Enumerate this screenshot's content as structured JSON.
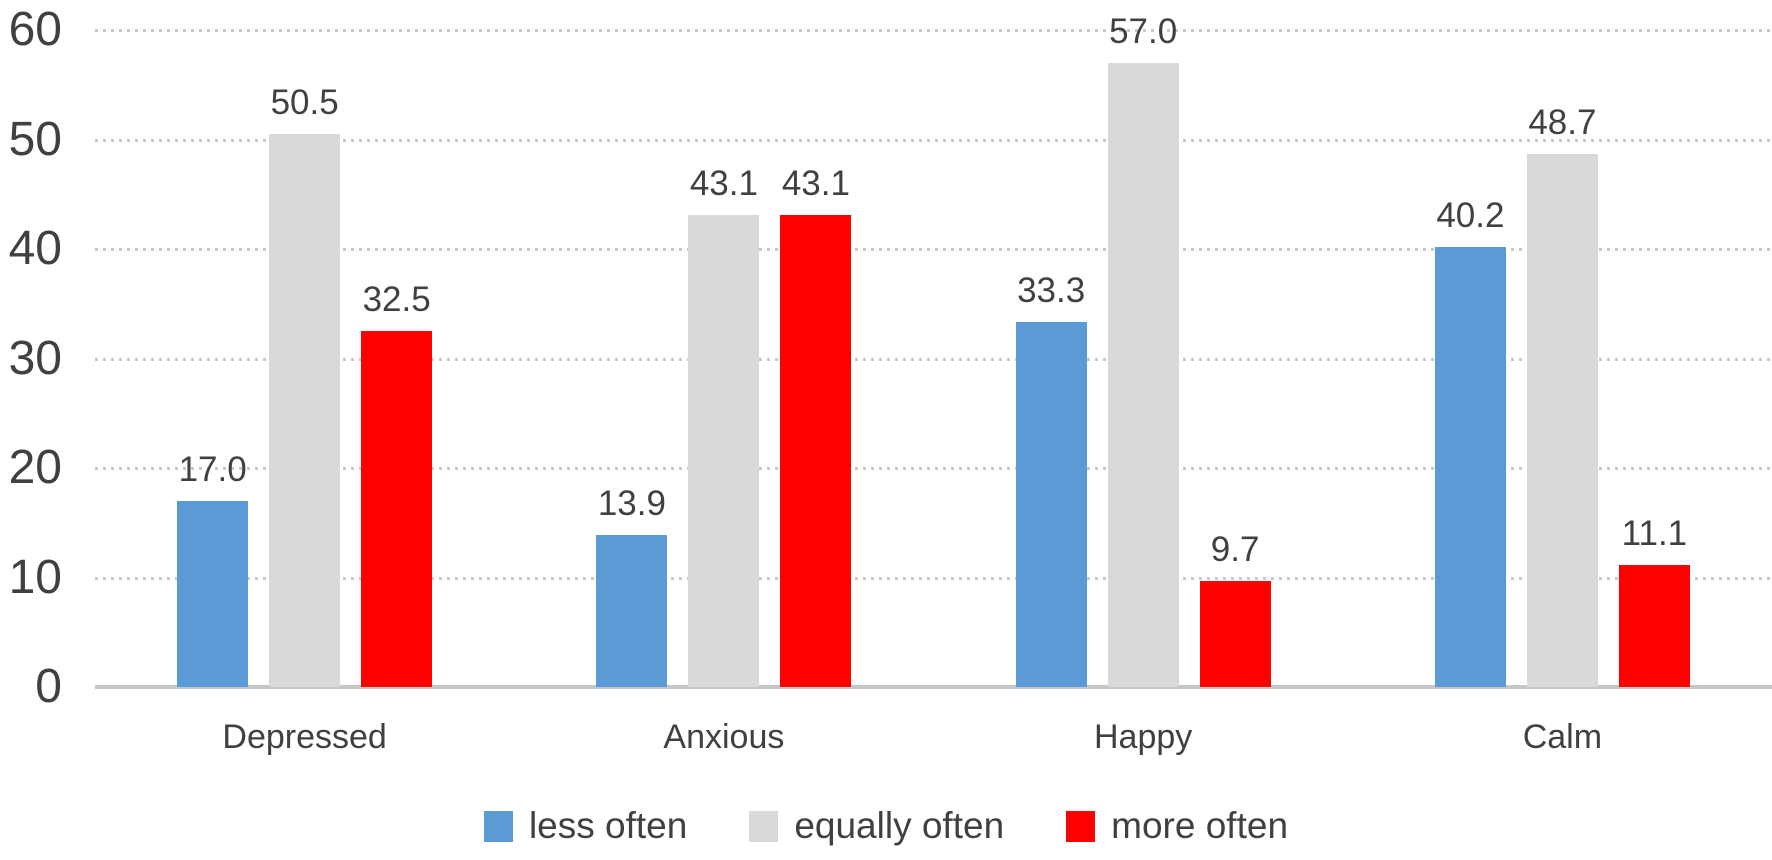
{
  "chart_data": {
    "type": "bar",
    "title": "",
    "xlabel": "",
    "ylabel": "",
    "categories": [
      "Depressed",
      "Anxious",
      "Happy",
      "Calm"
    ],
    "series": [
      {
        "name": "less often",
        "color": "#5B9BD5",
        "values": [
          17.0,
          13.9,
          33.3,
          40.2
        ]
      },
      {
        "name": "equally often",
        "color": "#D9D9D9",
        "values": [
          50.5,
          43.1,
          57.0,
          48.7
        ]
      },
      {
        "name": "more often",
        "color": "#FF0000",
        "values": [
          32.5,
          43.1,
          9.7,
          11.1
        ]
      }
    ],
    "ylim": [
      0,
      60
    ],
    "yticks": [
      0,
      10,
      20,
      30,
      40,
      50,
      60
    ],
    "grid": "horizontal-dotted",
    "legend_position": "bottom",
    "data_labels": "one-decimal-above-bars"
  },
  "colors": {
    "text": "#404040",
    "gridline": "#c9c9c9",
    "axis_line": "#c6c6c6",
    "background": "#ffffff"
  }
}
